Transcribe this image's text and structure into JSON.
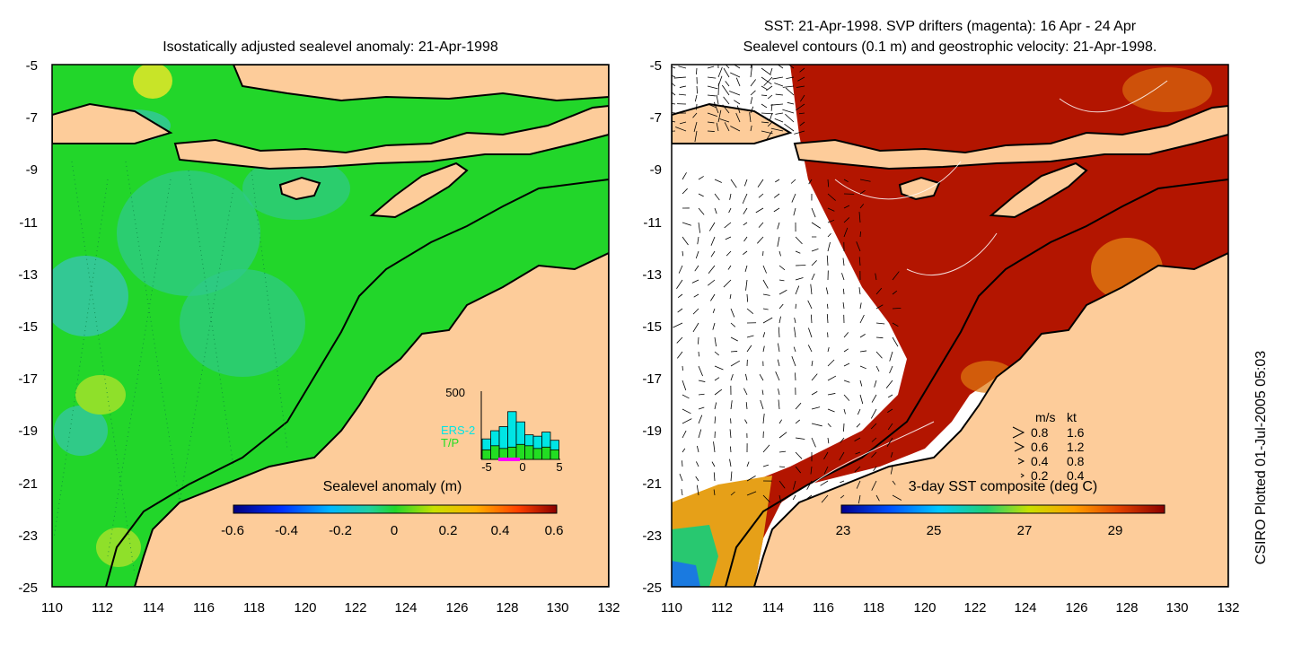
{
  "left_panel": {
    "title": "Isostatically adjusted sealevel anomaly: 21-Apr-1998",
    "y_ticks": [
      "-5",
      "-7",
      "-9",
      "-11",
      "-13",
      "-15",
      "-17",
      "-19",
      "-21",
      "-23",
      "-25"
    ],
    "x_ticks": [
      "110",
      "112",
      "114",
      "116",
      "118",
      "120",
      "122",
      "124",
      "126",
      "128",
      "130",
      "132"
    ],
    "colorbar": {
      "title": "Sealevel anomaly (m)",
      "ticks": [
        "-0.6",
        "-0.4",
        "-0.2",
        "0",
        "0.2",
        "0.4",
        "0.6"
      ]
    },
    "histogram": {
      "ymax_label": "500",
      "legend_ers": "ERS-2",
      "legend_tp": "T/P",
      "x_ticks": [
        "-5",
        "0",
        "5"
      ],
      "bars_cyan": [
        0.3,
        0.42,
        0.48,
        0.7,
        0.55,
        0.36,
        0.34,
        0.4,
        0.28
      ],
      "bars_green": [
        0.14,
        0.2,
        0.16,
        0.18,
        0.22,
        0.2,
        0.16,
        0.18,
        0.14
      ],
      "colors": {
        "ers": "#00e5e5",
        "tp": "#22dd22",
        "marker": "#ff00ff"
      }
    }
  },
  "right_panel": {
    "title_line1": "SST: 21-Apr-1998. SVP drifters (magenta): 16 Apr - 24 Apr",
    "title_line2": "Sealevel contours (0.1 m) and geostrophic velocity: 21-Apr-1998.",
    "y_ticks": [
      "-5",
      "-7",
      "-9",
      "-11",
      "-13",
      "-15",
      "-17",
      "-19",
      "-21",
      "-23",
      "-25"
    ],
    "x_ticks": [
      "110",
      "112",
      "114",
      "116",
      "118",
      "120",
      "122",
      "124",
      "126",
      "128",
      "130",
      "132"
    ],
    "colorbar": {
      "title": "3-day SST composite (deg C)",
      "ticks": [
        "23",
        "25",
        "27",
        "29"
      ]
    },
    "velocity_legend": {
      "header_ms": "m/s",
      "header_kt": "kt",
      "rows": [
        {
          "ms": "0.8",
          "kt": "1.6"
        },
        {
          "ms": "0.6",
          "kt": "1.2"
        },
        {
          "ms": "0.4",
          "kt": "0.8"
        },
        {
          "ms": "0.2",
          "kt": "0.4"
        }
      ]
    }
  },
  "side_label": "CSIRO Plotted 01-Jul-2005 05:03",
  "colors": {
    "land": "#fdcc9a",
    "ocean_green": "#22d62a",
    "ocean_deep": "#2fc98a",
    "ocean_teal": "#35c7a0",
    "anomaly_high": "#9ee22a",
    "sst_hot": "#b31500",
    "sst_cool": "#e6a018"
  }
}
